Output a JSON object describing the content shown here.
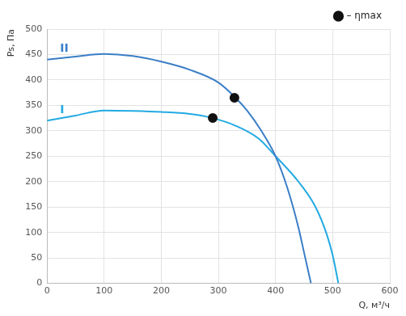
{
  "chart_data": {
    "type": "line",
    "x_label": "Q, м³/ч",
    "y_label": "Ps, Па",
    "xlim": [
      0,
      600
    ],
    "xticks": [
      0,
      100,
      200,
      300,
      400,
      500,
      600
    ],
    "ylim": [
      0,
      500
    ],
    "yticks": [
      0,
      50,
      100,
      150,
      200,
      250,
      300,
      350,
      400,
      450,
      500
    ],
    "grid": true,
    "legend": "upper right",
    "series": [
      {
        "name": "II",
        "color": "#3a7ec6",
        "marker": "none",
        "line_style": "solid",
        "x": [
          0,
          50,
          100,
          150,
          200,
          250,
          300,
          330,
          350,
          375,
          400,
          420,
          440,
          450,
          462
        ],
        "values": [
          440,
          446,
          451,
          447,
          436,
          420,
          395,
          365,
          340,
          300,
          250,
          190,
          110,
          60,
          0
        ]
      },
      {
        "name": "I",
        "color": "#22aae3",
        "marker": "none",
        "line_style": "solid",
        "x": [
          0,
          50,
          100,
          150,
          200,
          250,
          290,
          330,
          370,
          400,
          440,
          470,
          490,
          500,
          510
        ],
        "values": [
          320,
          330,
          340,
          339,
          337,
          333,
          325,
          310,
          285,
          250,
          200,
          150,
          95,
          55,
          0
        ]
      },
      {
        "name": "– ηmax",
        "type": "scatter",
        "color": "#111111",
        "marker": "circle",
        "x": [
          328,
          290
        ],
        "values": [
          365,
          325
        ]
      }
    ]
  }
}
